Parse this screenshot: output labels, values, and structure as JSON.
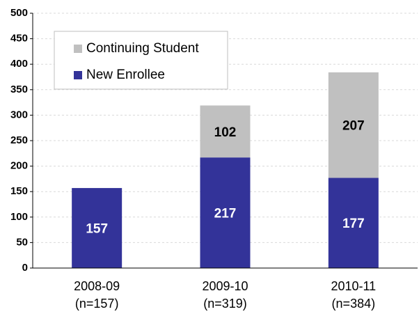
{
  "chart_data": {
    "type": "stacked_bar",
    "categories": [
      [
        "2008-09",
        "(n=157)"
      ],
      [
        "2009-10",
        "(n=319)"
      ],
      [
        "2010-11",
        "(n=384)"
      ]
    ],
    "series": [
      {
        "name": "New Enrollee",
        "color": "#333399",
        "label_color": "#ffffff",
        "values": [
          157,
          217,
          177
        ]
      },
      {
        "name": "Continuing Student",
        "color": "#c0c0c0",
        "label_color": "#000000",
        "values": [
          null,
          102,
          207
        ]
      }
    ],
    "ylim": [
      0,
      500
    ],
    "yticks": [
      0,
      50,
      100,
      150,
      200,
      250,
      300,
      350,
      400,
      450,
      500
    ],
    "grid": true
  }
}
